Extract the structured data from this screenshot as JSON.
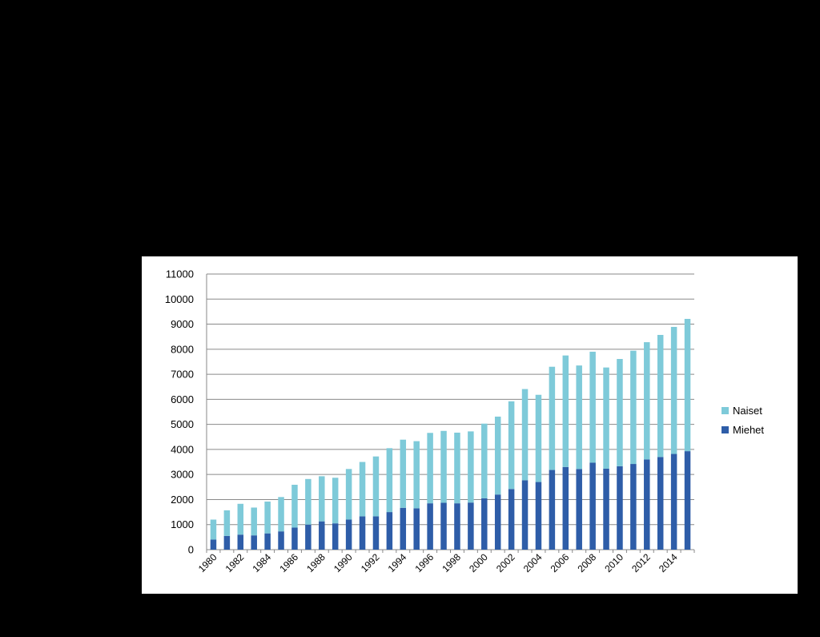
{
  "chart_data": {
    "type": "bar",
    "stacked": true,
    "title": "",
    "xlabel": "",
    "ylabel": "",
    "ylim": [
      0,
      11000
    ],
    "yticks": [
      0,
      1000,
      2000,
      3000,
      4000,
      5000,
      6000,
      7000,
      8000,
      9000,
      10000,
      11000
    ],
    "grid": true,
    "legend_position": "right",
    "categories": [
      1980,
      1981,
      1982,
      1983,
      1984,
      1985,
      1986,
      1987,
      1988,
      1989,
      1990,
      1991,
      1992,
      1993,
      1994,
      1995,
      1996,
      1997,
      1998,
      1999,
      2000,
      2001,
      2002,
      2003,
      2004,
      2005,
      2006,
      2007,
      2008,
      2009,
      2010,
      2011,
      2012,
      2013,
      2014,
      2015
    ],
    "xtick_labels": [
      "1980",
      "1982",
      "1984",
      "1986",
      "1988",
      "1990",
      "1992",
      "1994",
      "1996",
      "1998",
      "2000",
      "2002",
      "2004",
      "2006",
      "2008",
      "2010",
      "2012",
      "2014"
    ],
    "series": [
      {
        "name": "Miehet",
        "color": "#2E5DA8",
        "values": [
          400,
          550,
          600,
          570,
          650,
          730,
          880,
          1000,
          1130,
          1050,
          1200,
          1330,
          1330,
          1500,
          1670,
          1650,
          1850,
          1870,
          1850,
          1880,
          2050,
          2200,
          2420,
          2770,
          2700,
          3180,
          3300,
          3220,
          3470,
          3230,
          3330,
          3420,
          3600,
          3700,
          3820,
          3930
        ]
      },
      {
        "name": "Naiset",
        "color": "#7ECAD9",
        "values": [
          800,
          1020,
          1230,
          1110,
          1270,
          1370,
          1710,
          1820,
          1800,
          1820,
          2020,
          2170,
          2390,
          2550,
          2720,
          2680,
          2810,
          2870,
          2820,
          2840,
          2980,
          3110,
          3500,
          3640,
          3480,
          4120,
          4450,
          4130,
          4430,
          4040,
          4280,
          4520,
          4680,
          4870,
          5070,
          5280
        ]
      }
    ]
  }
}
